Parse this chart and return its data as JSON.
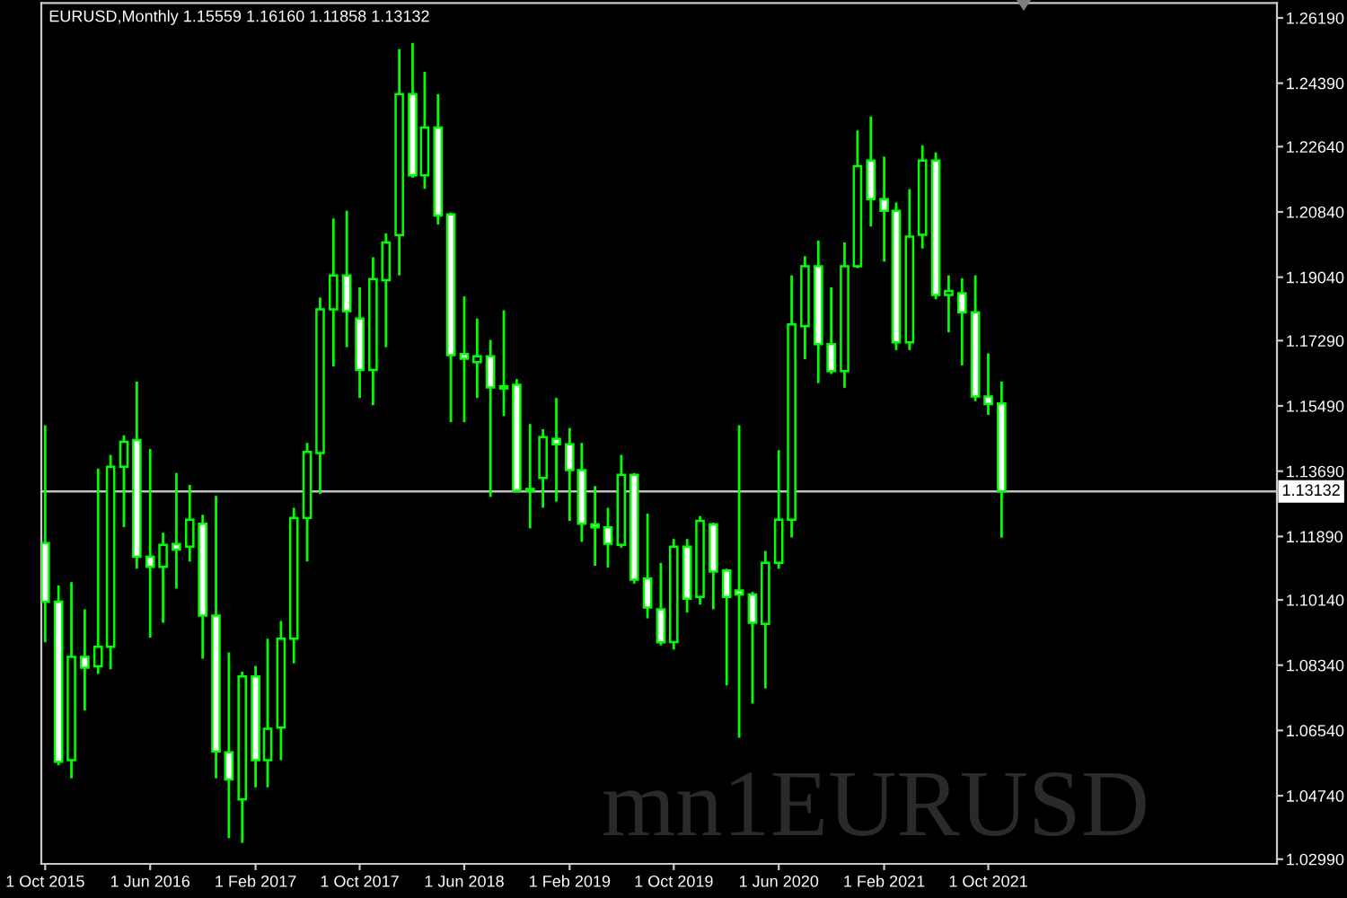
{
  "chart_data": {
    "type": "candlestick",
    "title": "EURUSD,Monthly 1.15559 1.16160 1.11858 1.13132",
    "x": [
      "2015-10",
      "2015-11",
      "2015-12",
      "2016-01",
      "2016-02",
      "2016-03",
      "2016-04",
      "2016-05",
      "2016-06",
      "2016-07",
      "2016-08",
      "2016-09",
      "2016-10",
      "2016-11",
      "2016-12",
      "2017-01",
      "2017-02",
      "2017-03",
      "2017-04",
      "2017-05",
      "2017-06",
      "2017-07",
      "2017-08",
      "2017-09",
      "2017-10",
      "2017-11",
      "2017-12",
      "2018-01",
      "2018-02",
      "2018-03",
      "2018-04",
      "2018-05",
      "2018-06",
      "2018-07",
      "2018-08",
      "2018-09",
      "2018-10",
      "2018-11",
      "2018-12",
      "2019-01",
      "2019-02",
      "2019-03",
      "2019-04",
      "2019-05",
      "2019-06",
      "2019-07",
      "2019-08",
      "2019-09",
      "2019-10",
      "2019-11",
      "2019-12",
      "2020-01",
      "2020-02",
      "2020-03",
      "2020-04",
      "2020-05",
      "2020-06",
      "2020-07",
      "2020-08",
      "2020-09",
      "2020-10",
      "2020-11",
      "2020-12",
      "2021-01",
      "2021-02",
      "2021-03",
      "2021-04",
      "2021-05",
      "2021-06",
      "2021-07",
      "2021-08",
      "2021-09",
      "2021-10",
      "2021-11"
    ],
    "ohlc": [
      [
        1.1171,
        1.1496,
        1.0897,
        1.1009
      ],
      [
        1.1009,
        1.1054,
        1.0558,
        1.0568
      ],
      [
        1.0572,
        1.1063,
        1.0522,
        1.0857
      ],
      [
        1.0857,
        1.0988,
        1.0709,
        1.0827
      ],
      [
        1.0831,
        1.1376,
        1.081,
        1.0885
      ],
      [
        1.0885,
        1.1414,
        1.0823,
        1.1381
      ],
      [
        1.1381,
        1.1468,
        1.1215,
        1.145
      ],
      [
        1.1455,
        1.1616,
        1.11,
        1.1133
      ],
      [
        1.1133,
        1.143,
        1.091,
        1.1105
      ],
      [
        1.1105,
        1.1199,
        1.0951,
        1.1166
      ],
      [
        1.1168,
        1.1364,
        1.1045,
        1.1153
      ],
      [
        1.1161,
        1.1331,
        1.112,
        1.1235
      ],
      [
        1.1224,
        1.1249,
        1.0852,
        1.0971
      ],
      [
        1.0971,
        1.1301,
        1.0522,
        1.0596
      ],
      [
        1.0594,
        1.0869,
        1.0357,
        1.0519
      ],
      [
        1.0464,
        1.0816,
        1.0344,
        1.0803
      ],
      [
        1.0803,
        1.0832,
        1.0497,
        1.0572
      ],
      [
        1.0572,
        1.0907,
        1.0497,
        1.0659
      ],
      [
        1.0662,
        1.0956,
        1.0572,
        1.0907
      ],
      [
        1.0907,
        1.1268,
        1.0839,
        1.124
      ],
      [
        1.124,
        1.1447,
        1.112,
        1.1422
      ],
      [
        1.1419,
        1.1848,
        1.1306,
        1.1815
      ],
      [
        1.1815,
        1.2066,
        1.1658,
        1.1909
      ],
      [
        1.1909,
        1.2087,
        1.1711,
        1.181
      ],
      [
        1.179,
        1.1876,
        1.1571,
        1.1648
      ],
      [
        1.1648,
        1.1959,
        1.1551,
        1.1899
      ],
      [
        1.1896,
        1.2025,
        1.1711,
        1.2
      ],
      [
        1.202,
        1.2533,
        1.1909,
        1.2409
      ],
      [
        1.2409,
        1.255,
        1.2178,
        1.2185
      ],
      [
        1.2185,
        1.247,
        1.2148,
        1.2317
      ],
      [
        1.2317,
        1.2409,
        1.2049,
        1.2074
      ],
      [
        1.2077,
        1.2082,
        1.1504,
        1.1689
      ],
      [
        1.1692,
        1.1851,
        1.1504,
        1.1679
      ],
      [
        1.167,
        1.179,
        1.1571,
        1.1686
      ],
      [
        1.1686,
        1.1731,
        1.1298,
        1.16
      ],
      [
        1.1597,
        1.1813,
        1.1521,
        1.1603
      ],
      [
        1.1607,
        1.1623,
        1.1311,
        1.1315
      ],
      [
        1.1315,
        1.1499,
        1.1211,
        1.132
      ],
      [
        1.135,
        1.1485,
        1.1268,
        1.1463
      ],
      [
        1.1458,
        1.1571,
        1.1285,
        1.1443
      ],
      [
        1.1443,
        1.1488,
        1.1232,
        1.1372
      ],
      [
        1.1372,
        1.1447,
        1.1174,
        1.1224
      ],
      [
        1.1222,
        1.1328,
        1.1108,
        1.1214
      ],
      [
        1.1214,
        1.1268,
        1.1103,
        1.1169
      ],
      [
        1.1166,
        1.1414,
        1.1158,
        1.1359
      ],
      [
        1.1359,
        1.1364,
        1.1059,
        1.107
      ],
      [
        1.1073,
        1.1252,
        1.0963,
        1.0993
      ],
      [
        1.0988,
        1.1116,
        1.0889,
        1.0897
      ],
      [
        1.0898,
        1.1182,
        1.0877,
        1.1161
      ],
      [
        1.1161,
        1.1182,
        1.0979,
        1.1017
      ],
      [
        1.1022,
        1.1245,
        1.1001,
        1.1232
      ],
      [
        1.1222,
        1.1227,
        1.0988,
        1.1092
      ],
      [
        1.1095,
        1.11,
        1.0778,
        1.1022
      ],
      [
        1.104,
        1.1496,
        1.0634,
        1.1029
      ],
      [
        1.1029,
        1.1036,
        1.0728,
        1.0951
      ],
      [
        1.0948,
        1.1149,
        1.077,
        1.1116
      ],
      [
        1.1116,
        1.1427,
        1.11,
        1.1235
      ],
      [
        1.1235,
        1.1909,
        1.1186,
        1.1774
      ],
      [
        1.1769,
        1.1962,
        1.1678,
        1.1934
      ],
      [
        1.1934,
        1.2005,
        1.1612,
        1.1719
      ],
      [
        1.1719,
        1.1876,
        1.1637,
        1.1645
      ],
      [
        1.1645,
        1.2,
        1.1599,
        1.1934
      ],
      [
        1.1934,
        1.2309,
        1.1929,
        1.221
      ],
      [
        1.2226,
        1.2347,
        1.2044,
        1.2119
      ],
      [
        1.2119,
        1.2236,
        1.1947,
        1.2087
      ],
      [
        1.2087,
        1.211,
        1.1703,
        1.1724
      ],
      [
        1.1724,
        1.2147,
        1.1703,
        1.2016
      ],
      [
        1.2021,
        1.2267,
        1.1983,
        1.2226
      ],
      [
        1.2226,
        1.2248,
        1.1843,
        1.1855
      ],
      [
        1.1855,
        1.1909,
        1.1752,
        1.1866
      ],
      [
        1.186,
        1.1901,
        1.1661,
        1.1807
      ],
      [
        1.1807,
        1.1909,
        1.1562,
        1.1575
      ],
      [
        1.1575,
        1.1694,
        1.1524,
        1.1554
      ],
      [
        1.15559,
        1.1616,
        1.11858,
        1.13132
      ]
    ],
    "color": "#00ff00",
    "colors": [
      "#ffffff",
      "#ffffff",
      "#000000",
      "#ffffff",
      "#000000",
      "#000000",
      "#000000",
      "#ffffff",
      "#ffffff",
      "#000000",
      "#ffffff",
      "#000000",
      "#ffffff",
      "#ffffff",
      "#ffffff",
      "#000000",
      "#ffffff",
      "#000000",
      "#000000",
      "#000000",
      "#000000",
      "#000000",
      "#000000",
      "#ffffff",
      "#ffffff",
      "#000000",
      "#000000",
      "#000000",
      "#ffffff",
      "#000000",
      "#ffffff",
      "#ffffff",
      "#ffffff",
      "#000000",
      "#ffffff",
      "#000000",
      "#ffffff",
      "#000000",
      "#000000",
      "#ffffff",
      "#ffffff",
      "#ffffff",
      "#ffffff",
      "#ffffff",
      "#000000",
      "#ffffff",
      "#ffffff",
      "#ffffff",
      "#000000",
      "#ffffff",
      "#000000",
      "#ffffff",
      "#ffffff",
      "#ffffff",
      "#ffffff",
      "#000000",
      "#000000",
      "#000000",
      "#000000",
      "#ffffff",
      "#ffffff",
      "#000000",
      "#000000",
      "#ffffff",
      "#ffffff",
      "#ffffff",
      "#000000",
      "#000000",
      "#ffffff",
      "#000000",
      "#ffffff",
      "#ffffff",
      "#ffffff",
      "#ffffff"
    ],
    "xlim": [
      "2015-09-22",
      "2023-08-03"
    ],
    "xticks": [
      {
        "value": "2015-10-01",
        "label": "1 Oct 2015"
      },
      {
        "value": "2016-06-01",
        "label": "1 Jun 2016"
      },
      {
        "value": "2017-02-01",
        "label": "1 Feb 2017"
      },
      {
        "value": "2017-10-01",
        "label": "1 Oct 2017"
      },
      {
        "value": "2018-06-01",
        "label": "1 Jun 2018"
      },
      {
        "value": "2019-02-01",
        "label": "1 Feb 2019"
      },
      {
        "value": "2019-10-01",
        "label": "1 Oct 2019"
      },
      {
        "value": "2020-06-01",
        "label": "1 Jun 2020"
      },
      {
        "value": "2021-02-01",
        "label": "1 Feb 2021"
      },
      {
        "value": "2021-10-01",
        "label": "1 Oct 2021"
      }
    ],
    "ylim": [
      1.0286,
      1.266
    ],
    "yticks": [
      {
        "value": 1.2619,
        "label": "1.26190"
      },
      {
        "value": 1.2439,
        "label": "1.24390"
      },
      {
        "value": 1.2264,
        "label": "1.22640"
      },
      {
        "value": 1.2084,
        "label": "1.20840"
      },
      {
        "value": 1.1904,
        "label": "1.19040"
      },
      {
        "value": 1.1729,
        "label": "1.17290"
      },
      {
        "value": 1.1549,
        "label": "1.15490"
      },
      {
        "value": 1.1369,
        "label": "1.13690"
      },
      {
        "value": 1.1189,
        "label": "1.11890"
      },
      {
        "value": 1.1014,
        "label": "1.10140"
      },
      {
        "value": 1.0834,
        "label": "1.08340"
      },
      {
        "value": 1.0654,
        "label": "1.06540"
      },
      {
        "value": 1.0474,
        "label": "1.04740"
      },
      {
        "value": 1.0299,
        "label": "1.02990"
      }
    ],
    "ref_lines": [
      {
        "axis": "y",
        "value": 1.13132,
        "label": "1.13132",
        "color": "#c0c0c0"
      }
    ],
    "annotations": [
      "mn1EURUSD"
    ]
  }
}
